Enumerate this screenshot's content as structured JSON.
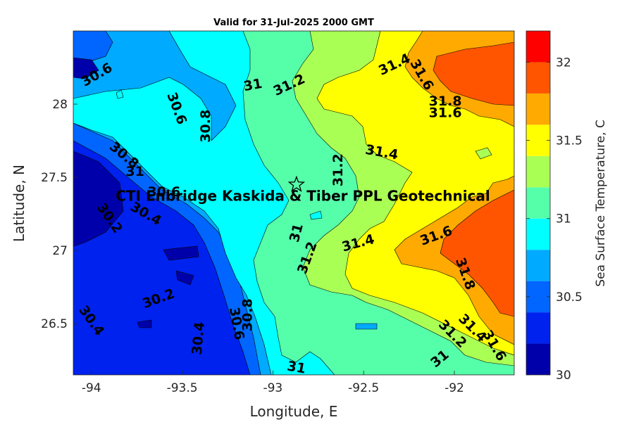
{
  "chart_data": {
    "type": "heatmap",
    "subtype": "filled-contour",
    "title": "Valid for 31-Jul-2025 2000 GMT",
    "xlabel": "Longitude, E",
    "ylabel": "Latitude, N",
    "xlim": [
      -94.1,
      -91.67
    ],
    "ylim": [
      26.15,
      28.5
    ],
    "xticks": [
      -94,
      -93.5,
      -93,
      -92.5,
      -92
    ],
    "xtick_labels": [
      "-94",
      "-93.5",
      "-93",
      "-92.5",
      "-92"
    ],
    "yticks": [
      26.5,
      27,
      27.5,
      28
    ],
    "ytick_labels": [
      "26.5",
      "27",
      "27.5",
      "28"
    ],
    "colorbar": {
      "label": "Sea Surface Temperature, C",
      "range": [
        30,
        32.2
      ],
      "levels": [
        30,
        30.2,
        30.4,
        30.6,
        30.8,
        31,
        31.2,
        31.4,
        31.6,
        31.8,
        32,
        32.2
      ],
      "colors": [
        "#0000aa",
        "#0022ee",
        "#0066ff",
        "#00aaff",
        "#00ffff",
        "#55ffaa",
        "#aaff55",
        "#ffff00",
        "#ffaa00",
        "#ff5500",
        "#ff0000"
      ],
      "ticks": [
        30,
        30.5,
        31,
        31.5,
        32
      ],
      "tick_labels": [
        "30",
        "30.5",
        "31",
        "31.5",
        "32"
      ]
    },
    "band_colors": {
      "b30_0": "#0000aa",
      "b30_2": "#0022ee",
      "b30_4": "#0066ff",
      "b30_6": "#00aaff",
      "b30_8": "#00ffff",
      "b31_0": "#55ffaa",
      "b31_2": "#aaff55",
      "b31_4": "#ffff00",
      "b31_6": "#ffaa00",
      "b31_8": "#ff5500"
    },
    "contour_labels": [
      {
        "text": "30.6",
        "lon": -93.97,
        "lat": 28.2,
        "angle": -30
      },
      {
        "text": "30.6",
        "lon": -93.53,
        "lat": 27.97,
        "angle": 70
      },
      {
        "text": "30.8",
        "lon": -93.37,
        "lat": 27.85,
        "angle": -90
      },
      {
        "text": "31",
        "lon": -93.11,
        "lat": 28.13,
        "angle": -10
      },
      {
        "text": "31.2",
        "lon": -92.91,
        "lat": 28.13,
        "angle": -25
      },
      {
        "text": "31.4",
        "lon": -92.33,
        "lat": 28.27,
        "angle": -25
      },
      {
        "text": "31.6",
        "lon": -92.18,
        "lat": 28.2,
        "angle": 60
      },
      {
        "text": "31.8",
        "lon": -92.05,
        "lat": 28.02,
        "angle": 0
      },
      {
        "text": "31.6",
        "lon": -92.05,
        "lat": 27.94,
        "angle": 0
      },
      {
        "text": "31.4",
        "lon": -92.4,
        "lat": 27.67,
        "angle": 10
      },
      {
        "text": "31.2",
        "lon": -92.64,
        "lat": 27.55,
        "angle": -90
      },
      {
        "text": "30.8",
        "lon": -93.82,
        "lat": 27.65,
        "angle": 40
      },
      {
        "text": "31",
        "lon": -93.76,
        "lat": 27.54,
        "angle": 0
      },
      {
        "text": "30.6",
        "lon": -93.6,
        "lat": 27.4,
        "angle": 0
      },
      {
        "text": "30.4",
        "lon": -93.7,
        "lat": 27.25,
        "angle": 30
      },
      {
        "text": "30.2",
        "lon": -93.9,
        "lat": 27.22,
        "angle": 55
      },
      {
        "text": "31",
        "lon": -92.87,
        "lat": 27.12,
        "angle": -75
      },
      {
        "text": "31.2",
        "lon": -92.81,
        "lat": 26.95,
        "angle": -70
      },
      {
        "text": "31.4",
        "lon": -92.53,
        "lat": 27.05,
        "angle": -15
      },
      {
        "text": "31.6",
        "lon": -92.1,
        "lat": 27.1,
        "angle": -20
      },
      {
        "text": "31.8",
        "lon": -91.94,
        "lat": 26.84,
        "angle": 70
      },
      {
        "text": "30.2",
        "lon": -93.63,
        "lat": 26.67,
        "angle": -20
      },
      {
        "text": "30.4",
        "lon": -94.0,
        "lat": 26.52,
        "angle": 55
      },
      {
        "text": "30.8",
        "lon": -93.14,
        "lat": 26.56,
        "angle": -90
      },
      {
        "text": "30.6",
        "lon": -93.2,
        "lat": 26.5,
        "angle": 80
      },
      {
        "text": "30.4",
        "lon": -93.41,
        "lat": 26.4,
        "angle": -85
      },
      {
        "text": "31",
        "lon": -92.87,
        "lat": 26.2,
        "angle": 10
      },
      {
        "text": "31",
        "lon": -92.08,
        "lat": 26.26,
        "angle": -40
      },
      {
        "text": "31.2",
        "lon": -92.01,
        "lat": 26.43,
        "angle": 45
      },
      {
        "text": "31.4",
        "lon": -91.9,
        "lat": 26.47,
        "angle": 45
      },
      {
        "text": "31.6",
        "lon": -91.78,
        "lat": 26.35,
        "angle": 60
      }
    ],
    "annotation": {
      "text": "CTI Enbridge  Kaskida & Tiber PPL Geotechnical",
      "marker": "star",
      "lon": -92.87,
      "lat": 27.45
    }
  }
}
